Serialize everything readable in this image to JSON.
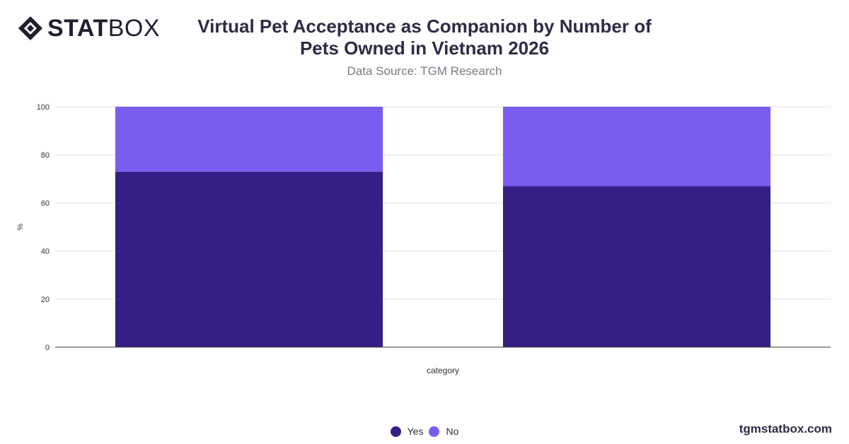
{
  "brand": {
    "logo_bold": "STAT",
    "logo_light": "BOX",
    "watermark": "tgmstatbox.com"
  },
  "header": {
    "title": "Virtual Pet Acceptance as Companion by Number of Pets Owned in Vietnam 2026",
    "subtitle": "Data Source: TGM Research"
  },
  "colors": {
    "yes": "#361e85",
    "no": "#7b5cf0",
    "grid": "#e3e3e3",
    "axis": "#333333"
  },
  "chart_data": {
    "type": "bar",
    "stacked": true,
    "categories": [
      "",
      ""
    ],
    "series": [
      {
        "name": "Yes",
        "values": [
          73,
          67
        ]
      },
      {
        "name": "No",
        "values": [
          27,
          33
        ]
      }
    ],
    "xlabel": "category",
    "ylabel": "%",
    "ylim": [
      0,
      100
    ],
    "yticks": [
      0,
      20,
      40,
      60,
      80,
      100
    ],
    "grid": true,
    "legend": "bottom-center"
  },
  "legend": {
    "items": [
      {
        "label": "Yes"
      },
      {
        "label": "No"
      }
    ]
  }
}
